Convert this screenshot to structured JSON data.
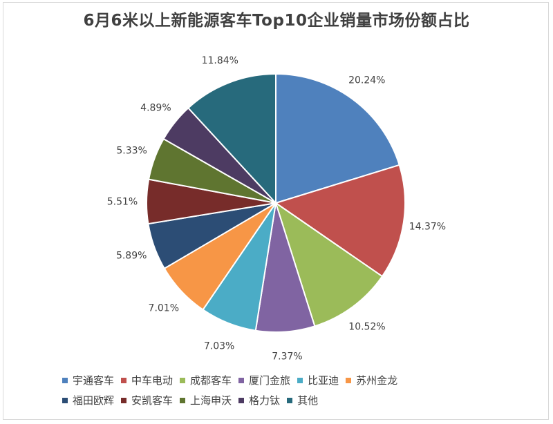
{
  "chart_data": {
    "type": "pie",
    "title": "6月6米以上新能源客车Top10企业销量市场份额占比",
    "categories": [
      "宇通客车",
      "中车电动",
      "成都客车",
      "厦门金旅",
      "比亚迪",
      "苏州金龙",
      "福田欧辉",
      "安凯客车",
      "上海申沃",
      "格力钛",
      "其他"
    ],
    "values": [
      20.24,
      14.37,
      10.52,
      7.37,
      7.03,
      7.01,
      5.89,
      5.51,
      5.33,
      4.89,
      11.84
    ],
    "labels": [
      "20.24%",
      "14.37%",
      "10.52%",
      "7.37%",
      "7.03%",
      "7.01%",
      "5.89%",
      "5.51%",
      "5.33%",
      "4.89%",
      "11.84%"
    ],
    "colors": [
      "#4f81bd",
      "#c0504d",
      "#9bbb59",
      "#8064a2",
      "#4bacc6",
      "#f79646",
      "#2c4d75",
      "#772c2a",
      "#5f7530",
      "#4d3b62",
      "#276a7c"
    ],
    "legend_position": "bottom"
  }
}
